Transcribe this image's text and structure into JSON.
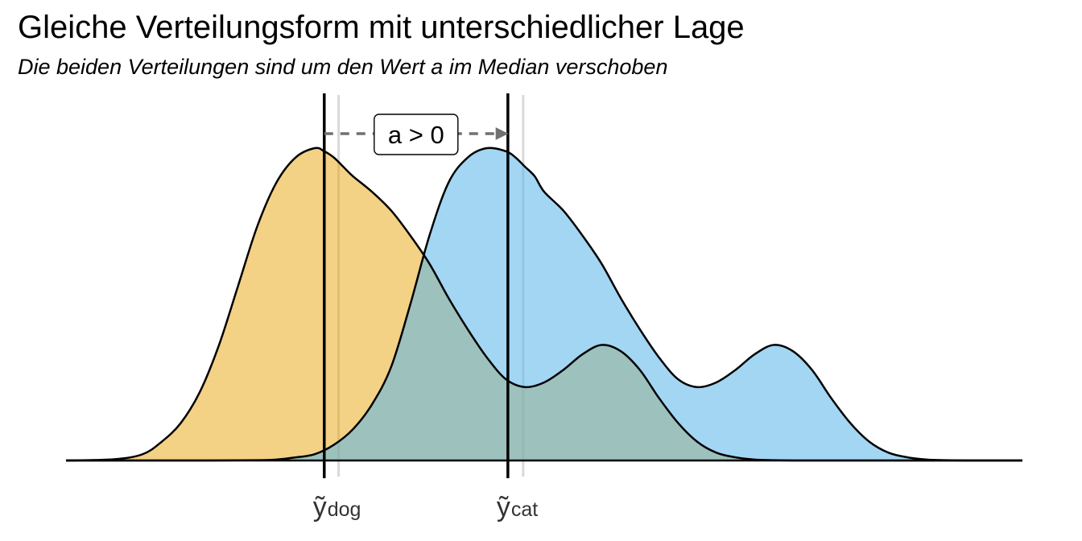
{
  "chart_data": {
    "type": "area",
    "title": "Gleiche Verteilungsform mit unterschiedlicher Lage",
    "subtitle": "Die beiden Verteilungen sind um den Wert a im Median verschoben",
    "xlabel": "",
    "ylabel": "",
    "grid": false,
    "legend": "none",
    "xlim": [
      0,
      10
    ],
    "ylim": [
      0,
      1
    ],
    "series": [
      {
        "color": "#E69F00",
        "opacity": 0.48,
        "x": [
          0,
          0.5,
          0.8,
          1.0,
          1.2,
          1.4,
          1.6,
          1.8,
          2.0,
          2.2,
          2.4,
          2.6,
          2.7,
          2.8,
          2.9,
          3.0,
          3.2,
          3.4,
          3.6,
          3.8,
          4.0,
          4.2,
          4.4,
          4.6,
          4.8,
          5.0,
          5.2,
          5.4,
          5.6,
          5.8,
          6.0,
          6.2,
          6.4,
          6.6,
          6.8,
          7.0,
          7.2,
          7.4,
          7.6,
          7.8,
          8.0,
          8.2,
          8.4,
          8.6,
          8.8,
          9.0,
          9.5,
          10.0
        ],
        "y": [
          0.0,
          0.004,
          0.02,
          0.06,
          0.12,
          0.22,
          0.37,
          0.56,
          0.75,
          0.89,
          0.97,
          1.0,
          0.99,
          0.97,
          0.94,
          0.91,
          0.86,
          0.8,
          0.72,
          0.63,
          0.52,
          0.42,
          0.33,
          0.26,
          0.235,
          0.25,
          0.29,
          0.34,
          0.37,
          0.35,
          0.29,
          0.2,
          0.12,
          0.06,
          0.025,
          0.01,
          0.003,
          0.001,
          0.0,
          0.0,
          0.0,
          0.0,
          0.0,
          0.0,
          0.0,
          0.0,
          0.0,
          0.0
        ]
      },
      {
        "color": "#56B4E9",
        "opacity": 0.55,
        "x": [
          0,
          0.5,
          1.0,
          1.5,
          2.0,
          2.2,
          2.4,
          2.6,
          2.8,
          3.0,
          3.2,
          3.4,
          3.6,
          3.8,
          4.0,
          4.2,
          4.4,
          4.6,
          4.7,
          4.8,
          4.9,
          5.0,
          5.2,
          5.4,
          5.6,
          5.8,
          6.0,
          6.2,
          6.4,
          6.6,
          6.8,
          7.0,
          7.2,
          7.4,
          7.6,
          7.8,
          8.0,
          8.2,
          8.4,
          8.6,
          8.8,
          9.0,
          9.2,
          9.4,
          9.6,
          9.8,
          10.0
        ],
        "y": [
          0.0,
          0.0,
          0.0,
          0.0,
          0.001,
          0.003,
          0.01,
          0.02,
          0.05,
          0.1,
          0.18,
          0.3,
          0.5,
          0.72,
          0.89,
          0.97,
          1.0,
          0.99,
          0.97,
          0.94,
          0.91,
          0.86,
          0.8,
          0.72,
          0.63,
          0.52,
          0.42,
          0.33,
          0.26,
          0.235,
          0.25,
          0.29,
          0.34,
          0.37,
          0.35,
          0.29,
          0.2,
          0.12,
          0.06,
          0.025,
          0.01,
          0.003,
          0.001,
          0.0,
          0.0,
          0.0,
          0.0
        ]
      }
    ],
    "medians": [
      {
        "label_base": "ỹ",
        "label_sub": "dog",
        "x": 2.7
      },
      {
        "label_base": "ỹ",
        "label_sub": "cat",
        "x": 4.62
      }
    ],
    "median_guides": [
      2.85,
      4.78
    ],
    "shift_arrow": {
      "from": 2.7,
      "to": 4.62,
      "y": 1.04,
      "label": "a > 0"
    }
  }
}
